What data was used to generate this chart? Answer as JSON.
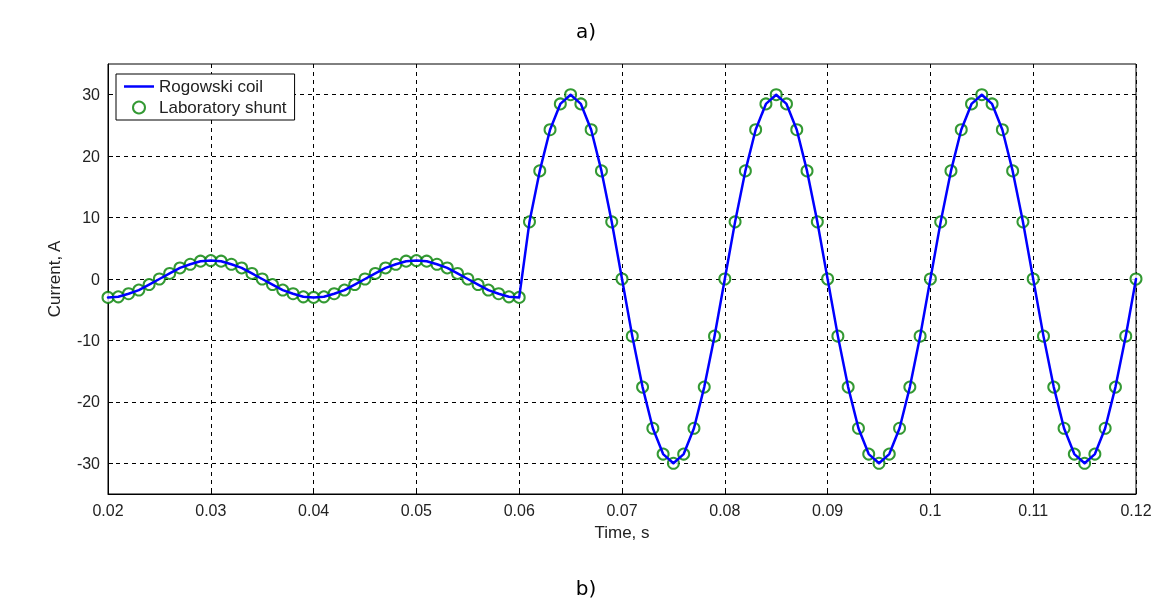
{
  "chart_data": {
    "type": "line",
    "title": "a)",
    "annotations": [
      "b)"
    ],
    "xlabel": "Time, s",
    "ylabel": "Current, A",
    "x": [
      0.02,
      0.021,
      0.022,
      0.023,
      0.024,
      0.025,
      0.026,
      0.027,
      0.028,
      0.029,
      0.03,
      0.031,
      0.032,
      0.033,
      0.034,
      0.035,
      0.036,
      0.037,
      0.038,
      0.039,
      0.04,
      0.041,
      0.042,
      0.043,
      0.044,
      0.045,
      0.046,
      0.047,
      0.048,
      0.049,
      0.05,
      0.051,
      0.052,
      0.053,
      0.054,
      0.055,
      0.056,
      0.057,
      0.058,
      0.059,
      0.06,
      0.061,
      0.062,
      0.063,
      0.064,
      0.065,
      0.066,
      0.067,
      0.068,
      0.069,
      0.07,
      0.071,
      0.072,
      0.073,
      0.074,
      0.075,
      0.076,
      0.077,
      0.078,
      0.079,
      0.08,
      0.081,
      0.082,
      0.083,
      0.084,
      0.085,
      0.086,
      0.087,
      0.088,
      0.089,
      0.09,
      0.091,
      0.092,
      0.093,
      0.094,
      0.095,
      0.096,
      0.097,
      0.098,
      0.099,
      0.1,
      0.101,
      0.102,
      0.103,
      0.104,
      0.105,
      0.106,
      0.107,
      0.108,
      0.109,
      0.11,
      0.111,
      0.112,
      0.113,
      0.114,
      0.115,
      0.116,
      0.117,
      0.118,
      0.119,
      0.12
    ],
    "series": [
      {
        "name": "Rogowski coil",
        "marker": "none",
        "line_style": "solid",
        "color": "#0000ff",
        "values": [
          -3,
          -2.9,
          -2.4,
          -1.8,
          -0.9,
          0,
          0.9,
          1.8,
          2.4,
          2.9,
          3,
          2.9,
          2.4,
          1.8,
          0.9,
          0,
          -0.9,
          -1.8,
          -2.4,
          -2.9,
          -3,
          -2.9,
          -2.4,
          -1.8,
          -0.9,
          0,
          0.9,
          1.8,
          2.4,
          2.9,
          3,
          2.9,
          2.4,
          1.8,
          0.9,
          0,
          -0.9,
          -1.8,
          -2.4,
          -2.9,
          -3,
          9.3,
          17.6,
          24.3,
          28.5,
          30,
          28.5,
          24.3,
          17.6,
          9.3,
          0,
          -9.3,
          -17.6,
          -24.3,
          -28.5,
          -30,
          -28.5,
          -24.3,
          -17.6,
          -9.3,
          0,
          9.3,
          17.6,
          24.3,
          28.5,
          30,
          28.5,
          24.3,
          17.6,
          9.3,
          0,
          -9.3,
          -17.6,
          -24.3,
          -28.5,
          -30,
          -28.5,
          -24.3,
          -17.6,
          -9.3,
          0,
          9.3,
          17.6,
          24.3,
          28.5,
          30,
          28.5,
          24.3,
          17.6,
          9.3,
          0,
          -9.3,
          -17.6,
          -24.3,
          -28.5,
          -30,
          -28.5,
          -24.3,
          -17.6,
          -9.3,
          0
        ]
      },
      {
        "name": "Laboratory shunt",
        "type": "scatter",
        "marker": "circle",
        "color": "#008000",
        "values": [
          -3,
          -2.9,
          -2.4,
          -1.8,
          -0.9,
          0,
          0.9,
          1.8,
          2.4,
          2.9,
          3,
          2.9,
          2.4,
          1.8,
          0.9,
          0,
          -0.9,
          -1.8,
          -2.4,
          -2.9,
          -3,
          -2.9,
          -2.4,
          -1.8,
          -0.9,
          0,
          0.9,
          1.8,
          2.4,
          2.9,
          3,
          2.9,
          2.4,
          1.8,
          0.9,
          0,
          -0.9,
          -1.8,
          -2.4,
          -2.9,
          -3,
          9.3,
          17.6,
          24.3,
          28.5,
          30,
          28.5,
          24.3,
          17.6,
          9.3,
          0,
          -9.3,
          -17.6,
          -24.3,
          -28.5,
          -30,
          -28.5,
          -24.3,
          -17.6,
          -9.3,
          0,
          9.3,
          17.6,
          24.3,
          28.5,
          30,
          28.5,
          24.3,
          17.6,
          9.3,
          0,
          -9.3,
          -17.6,
          -24.3,
          -28.5,
          -30,
          -28.5,
          -24.3,
          -17.6,
          -9.3,
          0,
          9.3,
          17.6,
          24.3,
          28.5,
          30,
          28.5,
          24.3,
          17.6,
          9.3,
          0,
          -9.3,
          -17.6,
          -24.3,
          -28.5,
          -30,
          -28.5,
          -24.3,
          -17.6,
          -9.3,
          0
        ]
      }
    ],
    "xlim": [
      0.02,
      0.12
    ],
    "xticks": [
      0.02,
      0.03,
      0.04,
      0.05,
      0.06,
      0.07,
      0.08,
      0.09,
      0.1,
      0.11,
      0.12
    ],
    "ylim": [
      -35,
      35
    ],
    "yticks": [
      -30,
      -20,
      -10,
      0,
      10,
      20,
      30
    ],
    "grid": true,
    "legend": "top left"
  }
}
